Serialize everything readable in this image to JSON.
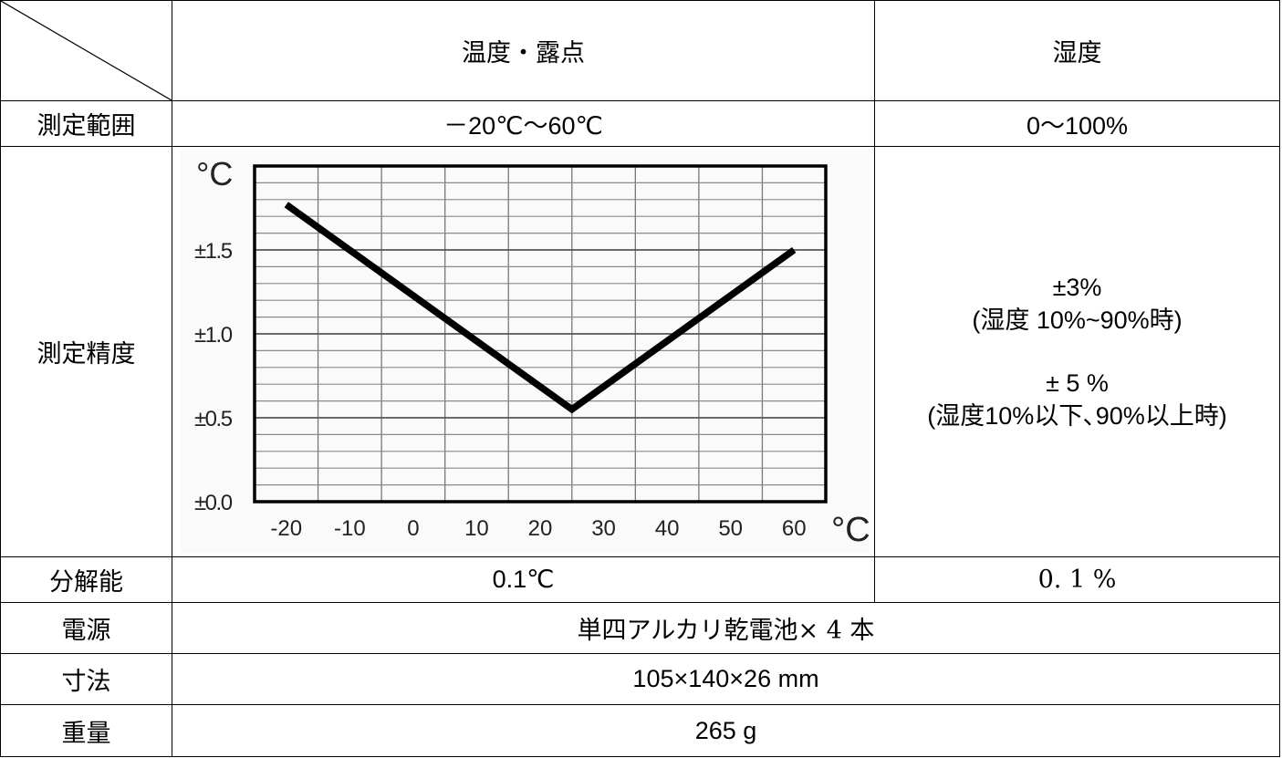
{
  "header": {
    "col_temp": "温度・露点",
    "col_humidity": "湿度"
  },
  "rows": {
    "range": {
      "label": "測定範囲",
      "temp": "－20℃～60℃",
      "humidity": "0～100%"
    },
    "accuracy": {
      "label": "測定精度",
      "humidity_line1": "±3%",
      "humidity_cond1": "(湿度 10%~90%時)",
      "humidity_line2": "± 5 %",
      "humidity_cond2": "(湿度10%以下､90%以上時)"
    },
    "resolution": {
      "label": "分解能",
      "temp": "0.1℃",
      "humidity": "0. 1 %"
    },
    "power": {
      "label": "電源",
      "value": "単四アルカリ乾電池× 4 本"
    },
    "dimensions": {
      "label": "寸法",
      "value": "105×140×26 mm"
    },
    "weight": {
      "label": "重量",
      "value": "265 g"
    }
  },
  "chart_data": {
    "type": "line",
    "x_unit": "°C",
    "y_unit": "°C",
    "x_ticks": [
      -20,
      -10,
      0,
      10,
      20,
      30,
      40,
      50,
      60
    ],
    "y_ticks": [
      {
        "value": 0.0,
        "label": "±0.0"
      },
      {
        "value": 0.5,
        "label": "±0.5"
      },
      {
        "value": 1.0,
        "label": "±1.0"
      },
      {
        "value": 1.5,
        "label": "±1.5"
      }
    ],
    "xlim": [
      -25,
      65
    ],
    "ylim": [
      0,
      2.0
    ],
    "grid": true,
    "x": [
      -20,
      25,
      60
    ],
    "y": [
      1.77,
      0.55,
      1.5
    ]
  }
}
